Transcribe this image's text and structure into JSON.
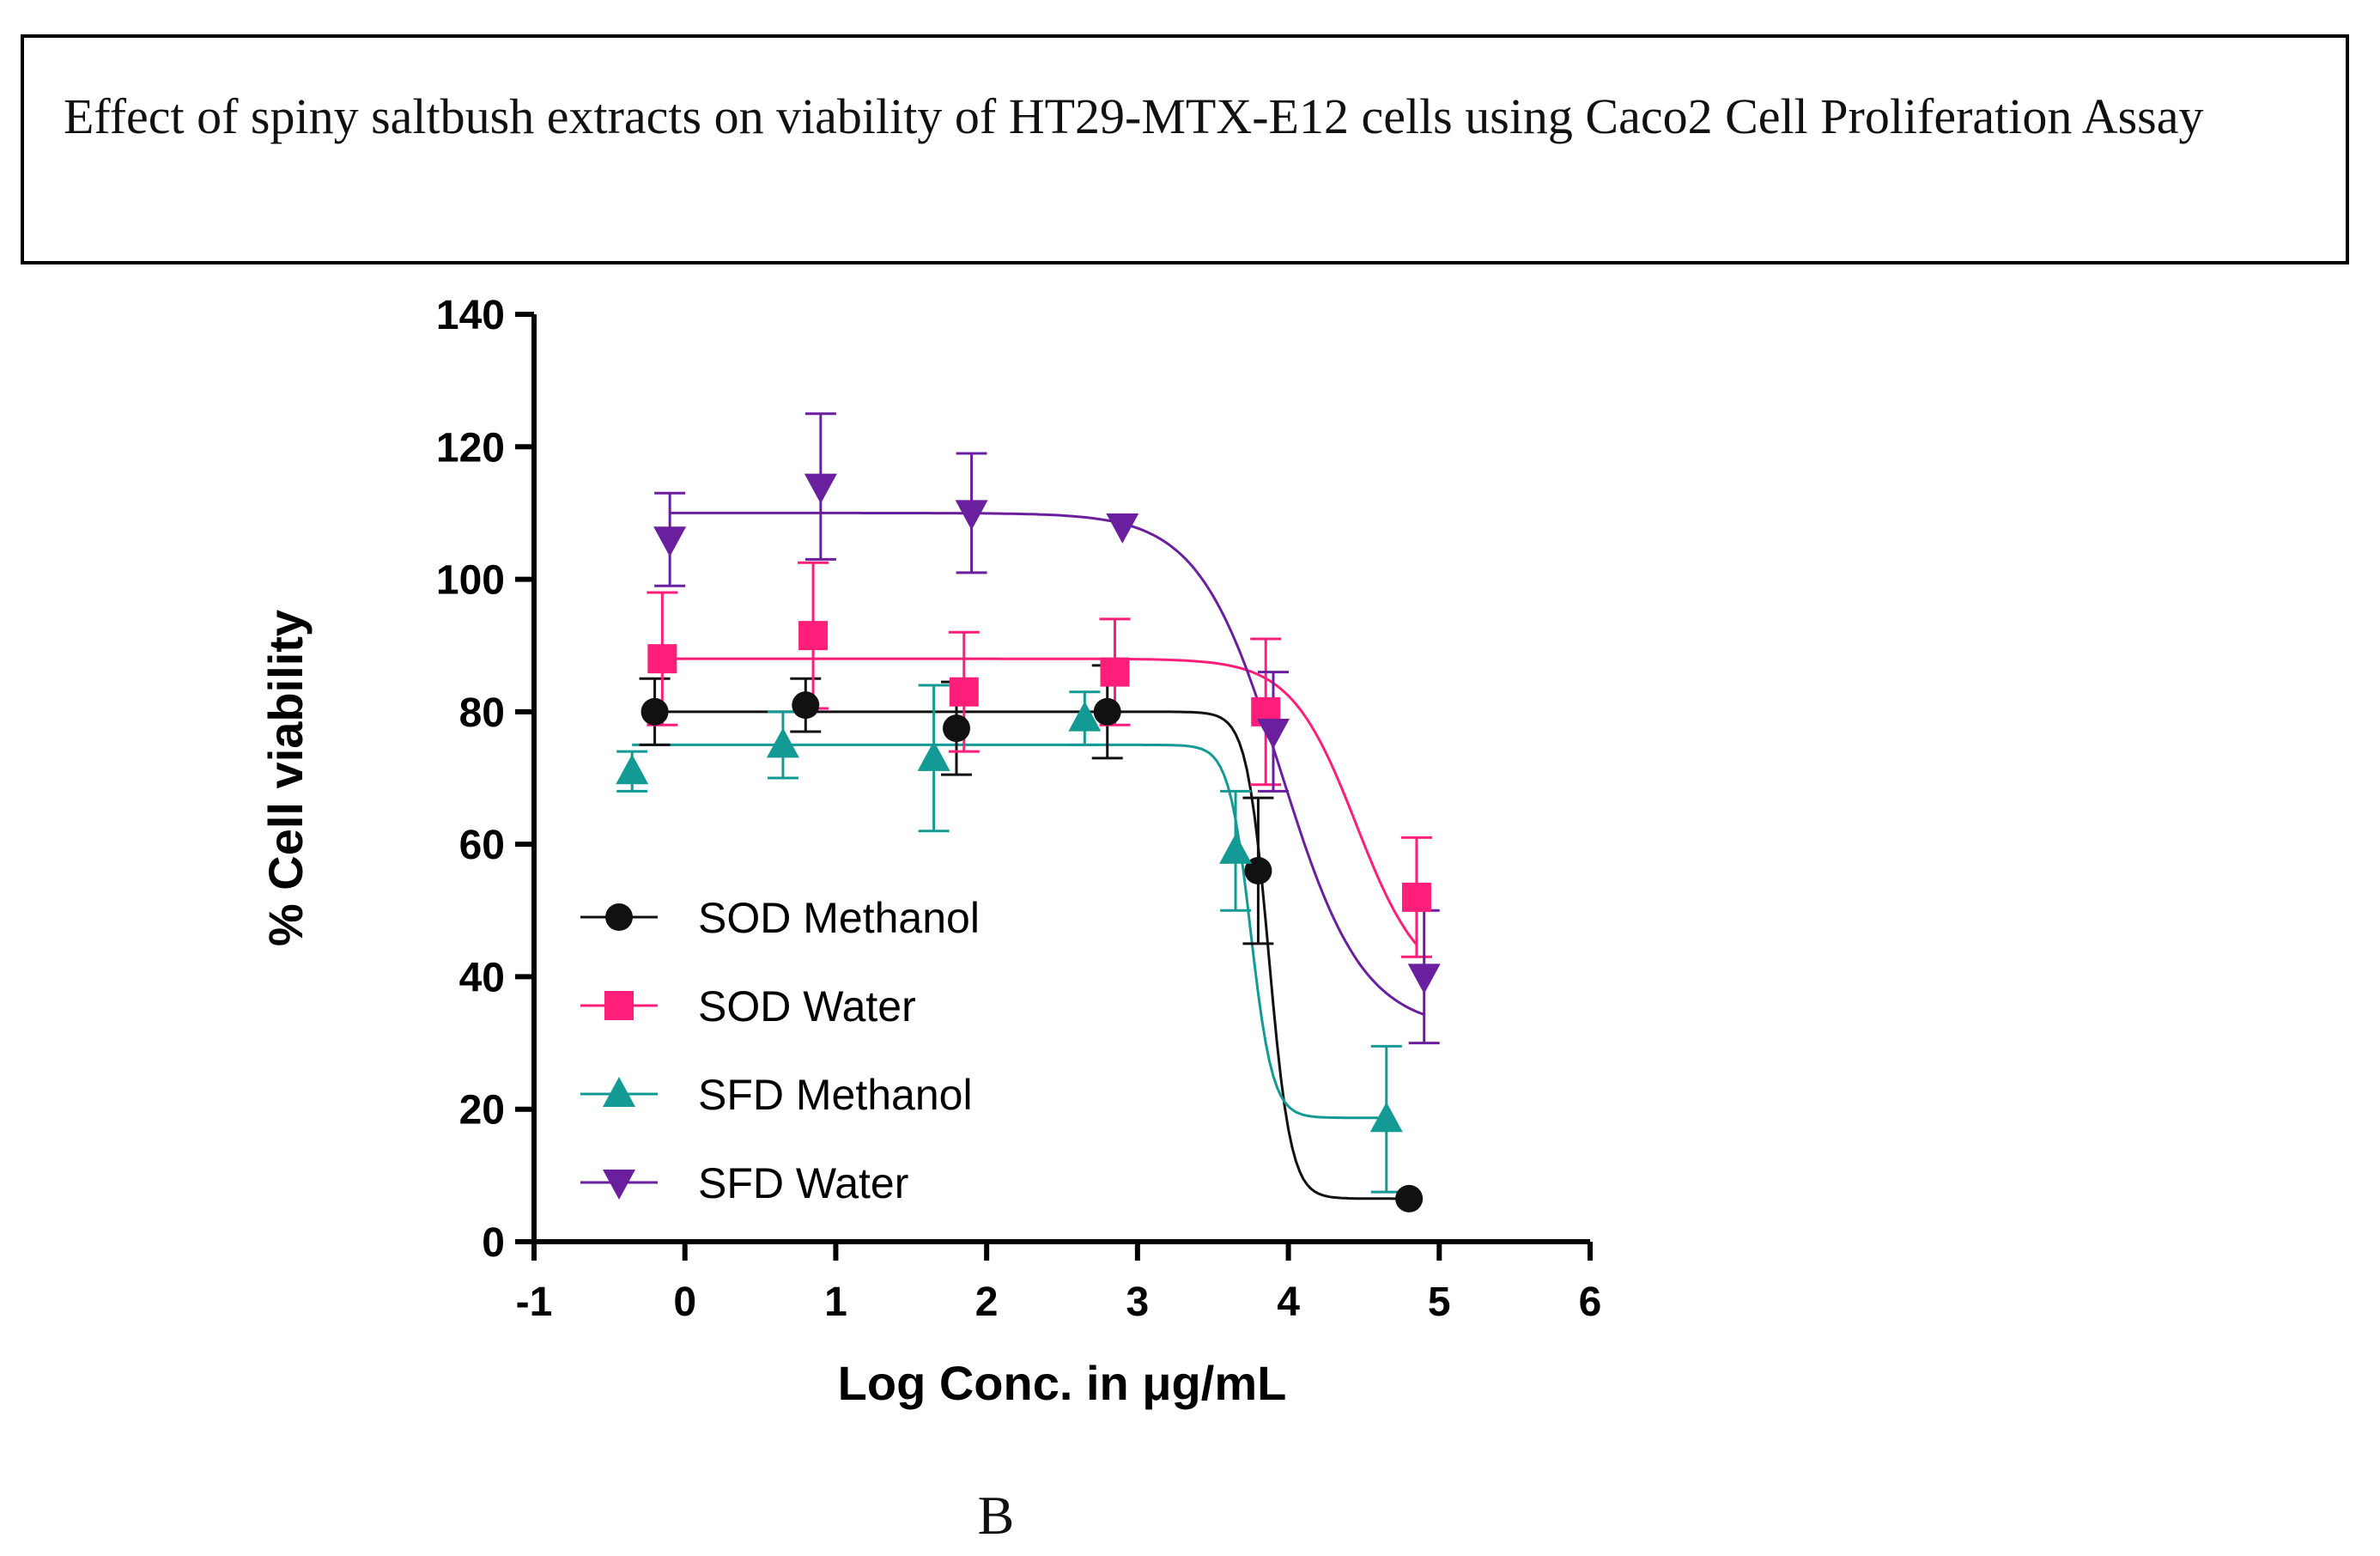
{
  "caption": "Effect of spiny saltbush extracts on viability of HT29-MTX-E12 cells using Caco2 Cell Proliferation Assay",
  "panel_label": "B",
  "chart_data": {
    "type": "scatter",
    "title": "",
    "xlabel": "Log Conc. in μg/mL",
    "ylabel": "% Cell viability",
    "xlim": [
      -1,
      6
    ],
    "ylim": [
      0,
      140
    ],
    "xticks": [
      "-1",
      "0",
      "1",
      "2",
      "3",
      "4",
      "5",
      "6"
    ],
    "yticks": [
      "0",
      "20",
      "40",
      "60",
      "80",
      "100",
      "120",
      "140"
    ],
    "legend_position": "bottom-left",
    "series": [
      {
        "name": "SOD Methanol",
        "color": "#111111",
        "marker": "circle",
        "x": [
          -0.2,
          0.8,
          1.8,
          2.8,
          3.8,
          4.8
        ],
        "y": [
          80,
          81,
          77.5,
          80,
          56,
          6.5
        ],
        "err": [
          5,
          4,
          7,
          7,
          11,
          0
        ],
        "fit": {
          "top": 80,
          "bottom": 6.5,
          "logEC50": 3.87,
          "hill": 6
        }
      },
      {
        "name": "SOD Water",
        "color": "#ff1f7a",
        "marker": "square",
        "x": [
          -0.15,
          0.85,
          1.85,
          2.85,
          3.85,
          4.85
        ],
        "y": [
          88,
          91.5,
          83,
          86,
          80,
          52
        ],
        "err": [
          10,
          11,
          9,
          8,
          11,
          9
        ],
        "fit": {
          "top": 88,
          "bottom": 38,
          "logEC50": 4.45,
          "hill": 2
        }
      },
      {
        "name": "SFD Methanol",
        "color": "#149a94",
        "marker": "triangle-up",
        "x": [
          -0.35,
          0.65,
          1.65,
          2.65,
          3.65,
          4.65
        ],
        "y": [
          71,
          75,
          73,
          79,
          59,
          18.5
        ],
        "err": [
          3,
          5,
          11,
          4,
          9,
          11
        ],
        "fit": {
          "top": 75,
          "bottom": 18.7,
          "logEC50": 3.75,
          "hill": 6
        }
      },
      {
        "name": "SFD Water",
        "color": "#6a1f9e",
        "marker": "triangle-down",
        "x": [
          -0.1,
          0.9,
          1.9,
          2.9,
          3.9,
          4.9
        ],
        "y": [
          106,
          114,
          110,
          108,
          77,
          40
        ],
        "err": [
          7,
          11,
          9,
          0,
          9,
          10
        ],
        "fit": {
          "top": 110,
          "bottom": 32,
          "logEC50": 3.95,
          "hill": 1.6
        }
      }
    ]
  }
}
